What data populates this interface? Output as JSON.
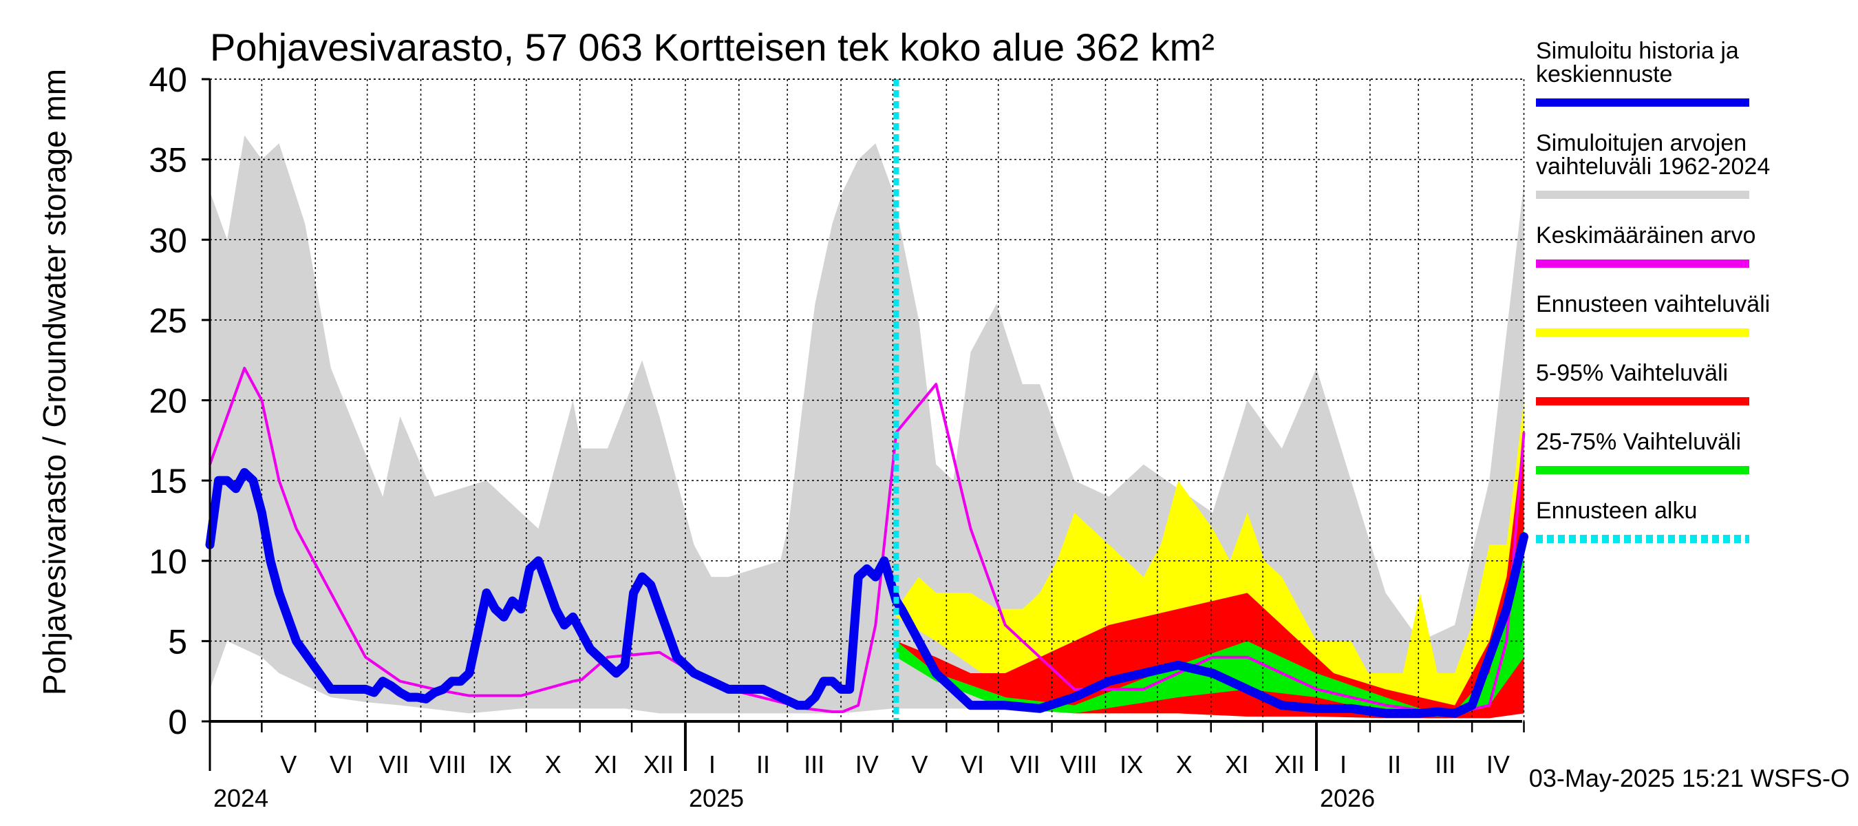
{
  "chart_data": {
    "type": "area",
    "title": "Pohjavesivarasto, 57 063 Kortteisen tek koko alue 362 km²",
    "ylabel": "Pohjavesivarasto / Groundwater storage   mm",
    "ylim": [
      0,
      40
    ],
    "yticks": [
      "0",
      "5",
      "10",
      "15",
      "20",
      "25",
      "30",
      "35",
      "40"
    ],
    "x_start": "2024-04-01",
    "x_end": "2026-04-30",
    "forecast_start": "2025-05-03",
    "months": [
      "V",
      "VI",
      "VII",
      "VIII",
      "IX",
      "X",
      "XI",
      "XII",
      "I",
      "II",
      "III",
      "IV",
      "V",
      "VI",
      "VII",
      "VIII",
      "IX",
      "X",
      "XI",
      "XII",
      "I",
      "II",
      "III",
      "IV"
    ],
    "years": [
      "2024",
      "2025",
      "2026"
    ],
    "timestamp": "03-May-2025 15:21 WSFS-O",
    "legend": [
      {
        "label": "Simuloitu historia ja keskiennuste",
        "color": "#0000ee",
        "style": "solid"
      },
      {
        "label": "Simuloitujen arvojen vaihteluväli 1962-2024",
        "color": "#d3d3d3",
        "style": "solid"
      },
      {
        "label": "Keskimääräinen arvo",
        "color": "#ee00ee",
        "style": "solid"
      },
      {
        "label": "Ennusteen vaihteluväli",
        "color": "#ffff00",
        "style": "solid"
      },
      {
        "label": "5-95% Vaihteluväli",
        "color": "#ff0000",
        "style": "solid"
      },
      {
        "label": "25-75% Vaihteluväli",
        "color": "#00ee00",
        "style": "solid"
      },
      {
        "label": "Ennusteen alku",
        "color": "#00e5ee",
        "style": "dotted"
      }
    ],
    "series": [
      {
        "name": "Simuloitujen arvojen vaihteluväli 1962-2024 (min)",
        "x": [
          0,
          10,
          20,
          30,
          40,
          50,
          60,
          70,
          90,
          110,
          150,
          180,
          215,
          240,
          260,
          280,
          300,
          330,
          365,
          395,
          430,
          460,
          480,
          500,
          520,
          560,
          590,
          640,
          700,
          760
        ],
        "y": [
          2,
          5,
          4.5,
          4,
          3,
          2.5,
          2,
          1.5,
          1.2,
          1,
          0.5,
          0.8,
          0.8,
          0.8,
          0.5,
          0.5,
          0.5,
          0.5,
          0.5,
          0.8,
          0.8,
          0.8,
          0.8,
          0.8,
          0.5,
          0.5,
          0.5,
          0.5,
          0.5,
          2
        ]
      },
      {
        "name": "Simuloitujen arvojen vaihteluväli 1962-2024 (max)",
        "x": [
          0,
          10,
          20,
          30,
          40,
          55,
          70,
          85,
          100,
          110,
          130,
          160,
          190,
          210,
          215,
          230,
          250,
          260,
          280,
          290,
          300,
          330,
          335,
          342,
          350,
          360,
          366,
          375,
          385,
          395,
          410,
          420,
          430,
          440,
          455,
          470,
          480,
          500,
          520,
          540,
          560,
          580,
          600,
          620,
          640,
          660,
          680,
          700,
          720,
          740,
          760
        ],
        "y": [
          33,
          30,
          36.5,
          35,
          36,
          31,
          22,
          18,
          14,
          19,
          14,
          15,
          12,
          20,
          17,
          17,
          22.5,
          19,
          11,
          9,
          9,
          10,
          12.5,
          19,
          26,
          31,
          33,
          35,
          36,
          33,
          25,
          16,
          15,
          23,
          26,
          21,
          21,
          15,
          14,
          16,
          14.5,
          13,
          20,
          17,
          22,
          15,
          8,
          5,
          6,
          15,
          33.5
        ]
      },
      {
        "name": "Ennusteen vaihteluväli (min)",
        "x": [
          397,
          420,
          460,
          500,
          560,
          600,
          640,
          680,
          700,
          720,
          740,
          750,
          760
        ],
        "y": [
          6.5,
          5,
          2,
          0.5,
          0.5,
          0.3,
          0.3,
          0.3,
          0.3,
          0.3,
          0.5,
          1,
          2
        ]
      },
      {
        "name": "Ennusteen vaihteluväli (max)",
        "x": [
          397,
          410,
          420,
          430,
          440,
          455,
          470,
          480,
          490,
          500,
          520,
          540,
          550,
          560,
          580,
          590,
          600,
          610,
          620,
          640,
          650,
          660,
          670,
          680,
          690,
          700,
          710,
          720,
          730,
          740,
          750,
          760
        ],
        "y": [
          7,
          9,
          8,
          8,
          8,
          7,
          7,
          8,
          10,
          13,
          11,
          9,
          11,
          15,
          12,
          10,
          13,
          10,
          9,
          5,
          5,
          5,
          3,
          3,
          3,
          8,
          3,
          3,
          6,
          11,
          11,
          20
        ]
      },
      {
        "name": "5-95% Vaihteluväli (min)",
        "x": [
          397,
          420,
          460,
          500,
          560,
          600,
          640,
          680,
          700,
          720,
          740,
          760
        ],
        "y": [
          5,
          3,
          1.5,
          0.5,
          0.5,
          0.3,
          0.3,
          0.2,
          0.2,
          0.2,
          0.2,
          0.5
        ]
      },
      {
        "name": "5-95% Vaihteluväli (max)",
        "x": [
          397,
          420,
          440,
          460,
          500,
          520,
          560,
          600,
          630,
          650,
          680,
          700,
          720,
          740,
          750,
          760
        ],
        "y": [
          5,
          4,
          3,
          3,
          5,
          6,
          7,
          8,
          5,
          3,
          2,
          1.5,
          1,
          5,
          9,
          18
        ]
      },
      {
        "name": "25-75% Vaihteluväli (min)",
        "x": [
          397,
          420,
          460,
          500,
          560,
          600,
          640,
          680,
          700,
          720,
          740,
          760
        ],
        "y": [
          4,
          2.5,
          0.8,
          0.5,
          1.5,
          2,
          1.5,
          0.5,
          0.3,
          0.3,
          1,
          4
        ]
      },
      {
        "name": "25-75% Vaihteluväli (max)",
        "x": [
          397,
          420,
          460,
          500,
          560,
          600,
          640,
          680,
          700,
          720,
          740,
          760
        ],
        "y": [
          5,
          3,
          1.5,
          1,
          3.5,
          5,
          3,
          1.5,
          0.8,
          0.6,
          3,
          12
        ]
      },
      {
        "name": "Keskimääräinen arvo",
        "x": [
          0,
          10,
          20,
          30,
          40,
          50,
          60,
          70,
          90,
          110,
          130,
          150,
          180,
          210,
          215,
          230,
          260,
          280,
          300,
          330,
          345,
          360,
          366,
          375,
          385,
          397,
          420,
          440,
          460,
          500,
          540,
          560,
          580,
          600,
          620,
          640,
          680,
          700,
          720,
          740,
          750,
          760
        ],
        "y": [
          16,
          19,
          22,
          20,
          15,
          12,
          10,
          8,
          4,
          2.5,
          2,
          1.6,
          1.6,
          2.5,
          2.6,
          4,
          4.3,
          3,
          2,
          1.2,
          0.8,
          0.6,
          0.6,
          1,
          6,
          18,
          21,
          12,
          6,
          2,
          2,
          3,
          4,
          4,
          3,
          2,
          1,
          0.7,
          0.5,
          1,
          5,
          18
        ]
      },
      {
        "name": "Simuloitu historia ja keskiennuste",
        "x": [
          0,
          5,
          10,
          15,
          20,
          25,
          30,
          35,
          40,
          50,
          60,
          70,
          80,
          90,
          95,
          100,
          105,
          110,
          115,
          120,
          125,
          130,
          135,
          140,
          145,
          150,
          160,
          165,
          170,
          175,
          180,
          185,
          190,
          195,
          200,
          205,
          210,
          215,
          220,
          225,
          230,
          235,
          240,
          245,
          250,
          255,
          260,
          270,
          280,
          290,
          300,
          310,
          320,
          330,
          340,
          345,
          350,
          355,
          360,
          365,
          370,
          375,
          380,
          385,
          390,
          397,
          400,
          410,
          420,
          430,
          440,
          460,
          480,
          500,
          520,
          540,
          560,
          580,
          600,
          620,
          640,
          660,
          680,
          700,
          710,
          720,
          730,
          740,
          750,
          760
        ],
        "y": [
          11,
          15,
          15,
          14.5,
          15.5,
          15,
          13,
          10,
          8,
          5,
          3.5,
          2,
          2,
          2,
          1.8,
          2.5,
          2.2,
          1.8,
          1.5,
          1.5,
          1.4,
          1.8,
          2.0,
          2.5,
          2.5,
          3,
          8,
          7,
          6.5,
          7.5,
          7,
          9.5,
          10,
          8.5,
          7,
          6,
          6.5,
          5.5,
          4.5,
          4,
          3.5,
          3,
          3.5,
          8,
          9,
          8.5,
          7,
          4,
          3,
          2.5,
          2,
          2,
          2,
          1.5,
          1,
          1,
          1.5,
          2.5,
          2.5,
          2,
          2,
          9,
          9.5,
          9,
          10,
          7.5,
          7,
          5,
          3,
          2,
          1,
          1,
          0.8,
          1.5,
          2.5,
          3,
          3.5,
          3,
          2,
          1,
          0.8,
          0.8,
          0.5,
          0.5,
          0.6,
          0.5,
          1,
          4,
          7,
          11.5
        ]
      }
    ]
  }
}
